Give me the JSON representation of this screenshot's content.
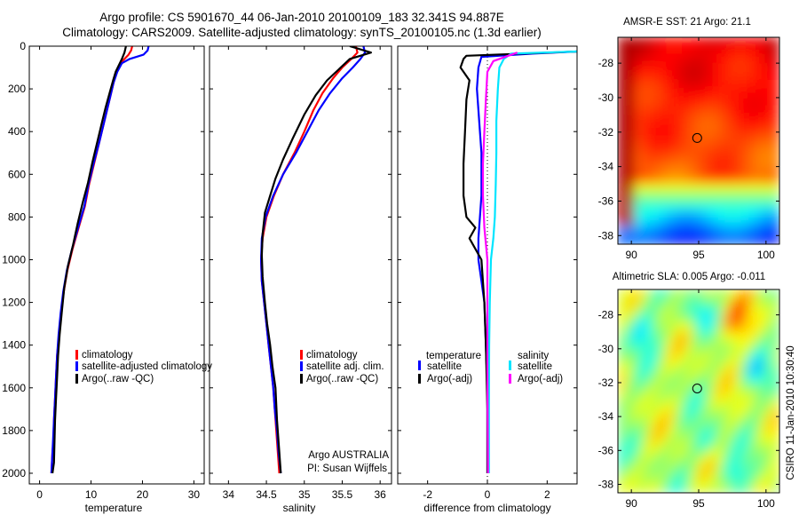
{
  "header": {
    "line1": "Argo profile: CS 5901670_44 06-Jan-2010 20100109_183 32.341S 94.887E",
    "line2": "Climatology: CARS2009. Satellite-adjusted climatology: synTS_20100105.nc (1.3d earlier)"
  },
  "sidebar_text": "CSIRO 11-Jan-2010 10:30:40",
  "colors": {
    "climatology": "#ff0000",
    "satellite": "#0000ff",
    "argo": "#000000",
    "sal_satellite": "#00e5ff",
    "sal_argo": "#ff00ff"
  },
  "chart_data": [
    {
      "type": "line",
      "name": "temperature-profile",
      "xlabel": "temperature",
      "ylabel": "",
      "xlim": [
        -2,
        32
      ],
      "ylim": [
        2050,
        0
      ],
      "xticks": [
        0,
        10,
        20,
        30
      ],
      "yticks": [
        0,
        200,
        400,
        600,
        800,
        1000,
        1200,
        1400,
        1600,
        1800,
        2000
      ],
      "legend_position": "lower-center",
      "legend": [
        "climatology",
        "satellite-adjusted climatology",
        "Argo(..raw -QC)"
      ],
      "series": [
        {
          "name": "climatology",
          "color": "#ff0000",
          "x": [
            18.0,
            17.8,
            17.3,
            16.5,
            15.7,
            15.0,
            14.4,
            13.6,
            12.6,
            11.6,
            10.6,
            9.6,
            8.8,
            7.6,
            6.4,
            5.4,
            4.7,
            4.2,
            3.8,
            3.4,
            3.2,
            3.0,
            2.8,
            2.7,
            2.5,
            2.4,
            2.3
          ],
          "y": [
            0,
            20,
            40,
            60,
            80,
            120,
            170,
            250,
            350,
            450,
            550,
            650,
            750,
            850,
            950,
            1050,
            1150,
            1250,
            1350,
            1450,
            1550,
            1650,
            1750,
            1850,
            1900,
            1950,
            2000
          ]
        },
        {
          "name": "satellite-adjusted climatology",
          "color": "#0000ff",
          "x": [
            21.2,
            21.0,
            20.2,
            17.5,
            16.0,
            15.1,
            14.4,
            13.6,
            12.6,
            11.6,
            10.5,
            9.5,
            8.7,
            7.5,
            6.3,
            5.3,
            4.6,
            4.1,
            3.7,
            3.4,
            3.2,
            3.0,
            2.8,
            2.6,
            2.5,
            2.4,
            2.3
          ],
          "y": [
            0,
            20,
            40,
            60,
            80,
            120,
            170,
            250,
            350,
            450,
            550,
            650,
            750,
            850,
            950,
            1050,
            1150,
            1250,
            1350,
            1450,
            1550,
            1650,
            1750,
            1850,
            1900,
            1950,
            2000
          ]
        },
        {
          "name": "Argo(..raw -QC)",
          "color": "#000000",
          "x": [
            16.8,
            16.5,
            16.0,
            15.4,
            14.8,
            14.3,
            13.6,
            12.8,
            12.0,
            11.2,
            10.3,
            9.4,
            8.4,
            7.4,
            6.5,
            5.5,
            4.8,
            4.3,
            3.9,
            3.6,
            3.4,
            3.2,
            3.0,
            2.9,
            2.8,
            2.5
          ],
          "y": [
            0,
            30,
            60,
            90,
            120,
            160,
            220,
            290,
            370,
            450,
            540,
            640,
            730,
            830,
            930,
            1030,
            1130,
            1250,
            1350,
            1450,
            1550,
            1650,
            1750,
            1850,
            1950,
            2000
          ]
        }
      ]
    },
    {
      "type": "line",
      "name": "salinity-profile",
      "xlabel": "salinity",
      "ylabel": "",
      "xlim": [
        33.75,
        36.15
      ],
      "ylim": [
        2050,
        0
      ],
      "xticks": [
        34,
        34.5,
        35,
        35.5,
        36
      ],
      "legend_position": "lower-right",
      "legend": [
        "climatology",
        "satellite adj. clim.",
        "Argo(..raw -QC)"
      ],
      "annotations": [
        "Argo AUSTRALIA",
        "PI: Susan Wijffels"
      ],
      "series": [
        {
          "name": "climatology",
          "color": "#ff0000",
          "x": [
            35.68,
            35.7,
            35.62,
            35.5,
            35.38,
            35.24,
            35.12,
            35.0,
            34.87,
            34.72,
            34.6,
            34.5,
            34.45,
            34.43,
            34.44,
            34.47,
            34.5,
            34.53,
            34.56,
            34.59,
            34.61,
            34.63,
            34.65,
            34.67
          ],
          "y": [
            0,
            30,
            60,
            100,
            150,
            220,
            300,
            400,
            500,
            600,
            700,
            800,
            900,
            1000,
            1100,
            1200,
            1300,
            1400,
            1500,
            1600,
            1700,
            1800,
            1900,
            2000
          ]
        },
        {
          "name": "satellite adj. clim.",
          "color": "#0000ff",
          "x": [
            35.78,
            35.8,
            35.74,
            35.64,
            35.5,
            35.34,
            35.19,
            35.04,
            34.89,
            34.72,
            34.59,
            34.49,
            34.44,
            34.43,
            34.44,
            34.47,
            34.5,
            34.53,
            34.56,
            34.59,
            34.61,
            34.64,
            34.66,
            34.69
          ],
          "y": [
            0,
            30,
            60,
            100,
            150,
            220,
            300,
            400,
            500,
            600,
            700,
            800,
            900,
            1000,
            1100,
            1200,
            1300,
            1400,
            1500,
            1600,
            1700,
            1800,
            1900,
            2000
          ]
        },
        {
          "name": "Argo(..raw -QC)",
          "color": "#000000",
          "x": [
            35.6,
            35.88,
            35.6,
            35.45,
            35.3,
            35.15,
            35.0,
            34.85,
            34.72,
            34.62,
            34.55,
            34.48,
            34.45,
            34.44,
            34.45,
            34.48,
            34.51,
            34.55,
            34.58,
            34.62,
            34.64,
            34.67,
            34.69
          ],
          "y": [
            0,
            30,
            60,
            110,
            160,
            230,
            320,
            430,
            530,
            620,
            700,
            780,
            880,
            980,
            1080,
            1200,
            1300,
            1400,
            1500,
            1600,
            1750,
            1900,
            2000
          ]
        }
      ]
    },
    {
      "type": "line",
      "name": "difference-profile",
      "xlabel": "difference from climatology",
      "ylabel": "",
      "xlim": [
        -3.0,
        3.0
      ],
      "ylim": [
        2050,
        0
      ],
      "xticks": [
        -2,
        0,
        2
      ],
      "legend_position": "lower-center",
      "legend": [
        "temperature",
        "satellite",
        "Argo(-adj)",
        "salinity",
        "satellite",
        "Argo(-adj)"
      ],
      "series": [
        {
          "name": "temperature satellite",
          "color": "#0000ff",
          "x": [
            3.0,
            1.5,
            -0.2,
            -0.3,
            -0.35,
            -0.3,
            -0.25,
            -0.2,
            -0.2,
            -0.2,
            -0.25,
            -0.3,
            -0.3,
            -0.2,
            -0.1,
            -0.05,
            0.0,
            0.0,
            0.0
          ],
          "y": [
            25,
            35,
            50,
            100,
            200,
            300,
            400,
            500,
            600,
            700,
            800,
            900,
            1000,
            1100,
            1200,
            1400,
            1600,
            1800,
            2000
          ]
        },
        {
          "name": "temperature Argo(-adj)",
          "color": "#000000",
          "x": [
            3.0,
            -0.7,
            -0.8,
            -0.9,
            -0.6,
            -0.7,
            -0.75,
            -0.8,
            -0.8,
            -0.7,
            -0.4,
            -0.6,
            -0.2,
            -0.1,
            -0.05,
            0.0,
            0.0
          ],
          "y": [
            25,
            45,
            60,
            100,
            160,
            250,
            400,
            550,
            700,
            800,
            850,
            900,
            1000,
            1200,
            1400,
            1700,
            2000
          ]
        },
        {
          "name": "salinity satellite",
          "color": "#00e5ff",
          "x": [
            3.0,
            0.8,
            0.55,
            0.4,
            0.35,
            0.3,
            0.3,
            0.28,
            0.25,
            0.2,
            0.12,
            0.08,
            0.06,
            0.05,
            0.05
          ],
          "y": [
            25,
            35,
            60,
            100,
            200,
            350,
            500,
            650,
            800,
            900,
            1000,
            1200,
            1400,
            1700,
            2000
          ]
        },
        {
          "name": "salinity Argo(-adj)",
          "color": "#ff00ff",
          "x": [
            1.0,
            0.2,
            0.0,
            -0.05,
            -0.1,
            -0.15,
            -0.15,
            -0.1,
            0.0,
            0.0,
            0.02
          ],
          "y": [
            30,
            70,
            120,
            250,
            400,
            550,
            700,
            850,
            1000,
            1500,
            2000
          ]
        }
      ]
    },
    {
      "type": "heatmap",
      "name": "sst-map",
      "title": "AMSR-E SST: 21 Argo: 21.1",
      "xlim": [
        89,
        101
      ],
      "ylim": [
        -38.5,
        -26.5
      ],
      "xticks": [
        90,
        95,
        100
      ],
      "yticks": [
        -28,
        -30,
        -32,
        -34,
        -36,
        -38
      ],
      "marker": {
        "lon": 94.887,
        "lat": -32.341
      },
      "colormap": "jet"
    },
    {
      "type": "heatmap",
      "name": "sla-map",
      "title": "Altimetric SLA: 0.005 Argo: -0.011",
      "xlim": [
        89,
        101
      ],
      "ylim": [
        -38.5,
        -26.5
      ],
      "xticks": [
        90,
        95,
        100
      ],
      "yticks": [
        -28,
        -30,
        -32,
        -34,
        -36,
        -38
      ],
      "marker": {
        "lon": 94.887,
        "lat": -32.341
      },
      "colormap": "jet"
    }
  ]
}
